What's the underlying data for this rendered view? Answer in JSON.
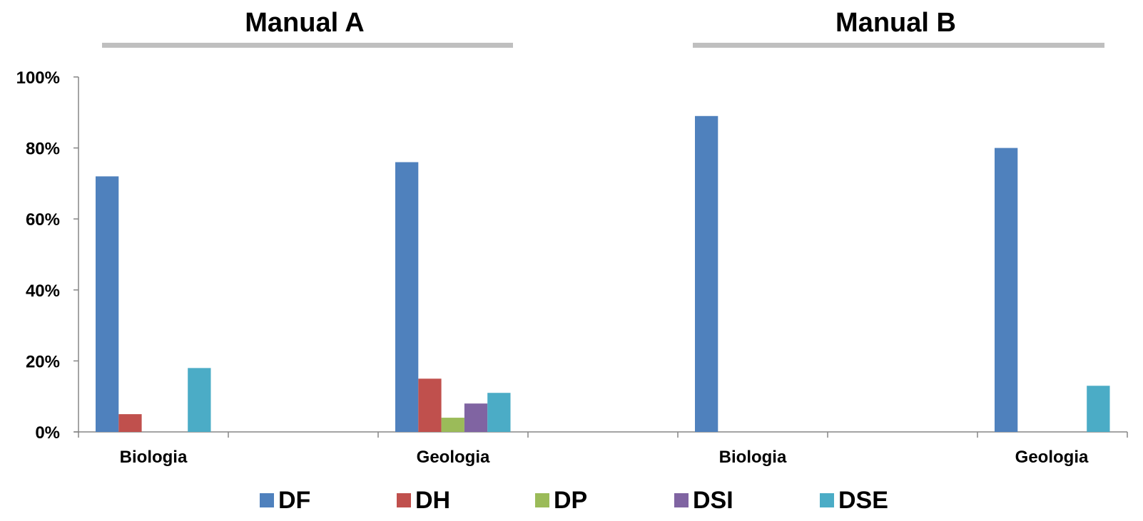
{
  "chart_data": {
    "type": "bar",
    "groups": [
      {
        "title": "Manual A",
        "categories": [
          "Biologia",
          "Geologia"
        ]
      },
      {
        "title": "Manual B",
        "categories": [
          "Biologia",
          "Geologia"
        ]
      }
    ],
    "categories": [
      "Biologia",
      "Geologia",
      "Biologia",
      "Geologia"
    ],
    "series": [
      {
        "name": "DF",
        "color": "#4F81BD",
        "values": [
          72,
          76,
          89,
          80
        ]
      },
      {
        "name": "DH",
        "color": "#C0504D",
        "values": [
          5,
          15,
          0,
          0
        ]
      },
      {
        "name": "DP",
        "color": "#9BBB59",
        "values": [
          0,
          4,
          0,
          0
        ]
      },
      {
        "name": "DSI",
        "color": "#8064A2",
        "values": [
          0,
          8,
          0,
          0
        ]
      },
      {
        "name": "DSE",
        "color": "#4BACC6",
        "values": [
          18,
          11,
          0,
          13
        ]
      }
    ],
    "yticks": [
      "0%",
      "20%",
      "40%",
      "60%",
      "80%",
      "100%"
    ],
    "ylim": [
      0,
      100
    ],
    "grid": false,
    "legend_position": "bottom"
  }
}
